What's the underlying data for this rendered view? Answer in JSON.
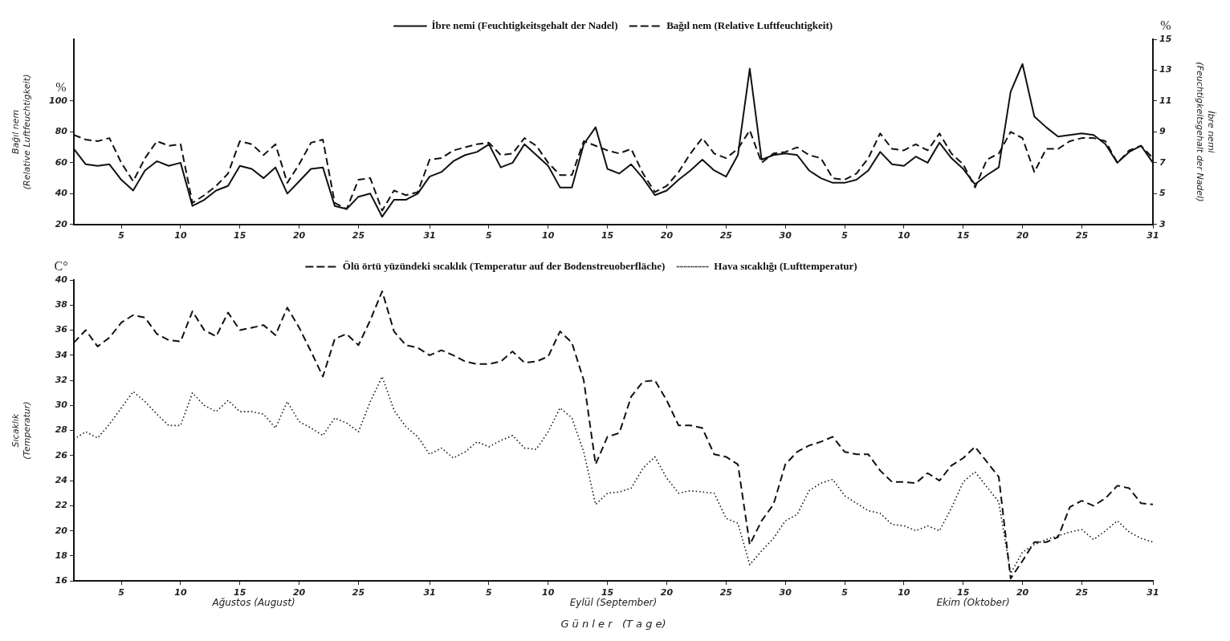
{
  "chart_data": [
    {
      "type": "line",
      "ylabel": "Bağıl nem (Relative Luftfeuchtigkeit)",
      "y2label": "İbre nemi (Feuchtigkeitsgehalt der Nadel)",
      "annotations": [
        "%",
        "%"
      ],
      "legend": "top",
      "grid": false,
      "x": [
        "--08-01",
        "--08-02",
        "--08-03",
        "--08-04",
        "--08-05",
        "--08-06",
        "--08-07",
        "--08-08",
        "--08-09",
        "--08-10",
        "--08-11",
        "--08-12",
        "--08-13",
        "--08-14",
        "--08-15",
        "--08-16",
        "--08-17",
        "--08-18",
        "--08-19",
        "--08-20",
        "--08-21",
        "--08-22",
        "--08-23",
        "--08-24",
        "--08-25",
        "--08-26",
        "--08-27",
        "--08-28",
        "--08-29",
        "--08-30",
        "--08-31",
        "--09-01",
        "--09-02",
        "--09-03",
        "--09-04",
        "--09-05",
        "--09-06",
        "--09-07",
        "--09-08",
        "--09-09",
        "--09-10",
        "--09-11",
        "--09-12",
        "--09-13",
        "--09-14",
        "--09-15",
        "--09-16",
        "--09-17",
        "--09-18",
        "--09-19",
        "--09-20",
        "--09-21",
        "--09-22",
        "--09-23",
        "--09-24",
        "--09-25",
        "--09-26",
        "--09-27",
        "--09-28",
        "--09-29",
        "--09-30",
        "--10-01",
        "--10-02",
        "--10-03",
        "--10-04",
        "--10-05",
        "--10-06",
        "--10-07",
        "--10-08",
        "--10-09",
        "--10-10",
        "--10-11",
        "--10-12",
        "--10-13",
        "--10-14",
        "--10-15",
        "--10-16",
        "--10-17",
        "--10-18",
        "--10-19",
        "--10-20",
        "--10-21",
        "--10-22",
        "--10-23",
        "--10-24",
        "--10-25",
        "--10-26",
        "--10-27",
        "--10-28",
        "--10-29",
        "--10-30",
        "--10-31"
      ],
      "xlim": [
        "--08-01",
        "--10-31"
      ],
      "xticks": [
        {
          "value": "--08-05",
          "label": "5"
        },
        {
          "value": "--08-10",
          "label": "10"
        },
        {
          "value": "--08-15",
          "label": "15"
        },
        {
          "value": "--08-20",
          "label": "20"
        },
        {
          "value": "--08-25",
          "label": "25"
        },
        {
          "value": "--08-31",
          "label": "31"
        },
        {
          "value": "--09-05",
          "label": "5"
        },
        {
          "value": "--09-10",
          "label": "10"
        },
        {
          "value": "--09-15",
          "label": "15"
        },
        {
          "value": "--09-20",
          "label": "20"
        },
        {
          "value": "--09-25",
          "label": "25"
        },
        {
          "value": "--09-30",
          "label": "30"
        },
        {
          "value": "--10-05",
          "label": "5"
        },
        {
          "value": "--10-10",
          "label": "10"
        },
        {
          "value": "--10-15",
          "label": "15"
        },
        {
          "value": "--10-20",
          "label": "20"
        },
        {
          "value": "--10-25",
          "label": "25"
        },
        {
          "value": "--10-31",
          "label": "31"
        }
      ],
      "ylim": [
        20,
        140
      ],
      "yticks": [
        20,
        40,
        60,
        80,
        100
      ],
      "y2lim": [
        3,
        15
      ],
      "y2ticks": [
        3,
        5,
        7,
        9,
        11,
        13,
        15
      ],
      "series": [
        {
          "name": "İbre nemi (Feuchtigkeitsgehalt der Nadel)",
          "color": "#111111",
          "line_style": "solid",
          "axis": "y2",
          "values": [
            7.9,
            6.9,
            6.8,
            6.9,
            5.9,
            5.2,
            6.5,
            7.1,
            6.8,
            7.0,
            4.2,
            4.6,
            5.2,
            5.5,
            6.8,
            6.6,
            6.0,
            6.7,
            5.0,
            5.8,
            6.6,
            6.7,
            4.2,
            4.0,
            4.8,
            5.0,
            3.5,
            4.6,
            4.6,
            5.0,
            6.1,
            6.4,
            7.1,
            7.5,
            7.7,
            8.2,
            6.7,
            7.0,
            8.2,
            7.5,
            6.8,
            5.4,
            5.4,
            8.2,
            9.3,
            6.6,
            6.3,
            6.9,
            6.0,
            4.9,
            5.2,
            5.9,
            6.5,
            7.2,
            6.5,
            6.1,
            7.5,
            13.1,
            7.2,
            7.5,
            7.6,
            7.5,
            6.5,
            6.0,
            5.7,
            5.7,
            5.9,
            6.5,
            7.7,
            6.9,
            6.8,
            7.4,
            7.0,
            8.3,
            7.3,
            6.6,
            5.6,
            6.2,
            6.7,
            11.6,
            13.4,
            10.0,
            9.3,
            8.7,
            8.8,
            8.9,
            8.8,
            8.2,
            7.0,
            7.7,
            8.1,
            7.0
          ]
        },
        {
          "name": "Bağıl nem (Relative Luftfeuchtigkeit)",
          "color": "#111111",
          "line_style": "dashed",
          "axis": "y",
          "values": [
            78,
            75,
            74,
            76,
            60,
            48,
            63,
            74,
            71,
            72,
            34,
            39,
            45,
            53,
            74,
            72,
            65,
            72,
            47,
            59,
            73,
            75,
            34,
            30,
            49,
            50,
            29,
            42,
            39,
            41,
            62,
            63,
            68,
            70,
            72,
            73,
            65,
            66,
            76,
            71,
            60,
            52,
            52,
            74,
            71,
            68,
            66,
            69,
            53,
            41,
            45,
            54,
            66,
            76,
            66,
            63,
            69,
            81,
            60,
            66,
            67,
            70,
            65,
            63,
            50,
            49,
            53,
            63,
            79,
            69,
            68,
            72,
            68,
            79,
            66,
            59,
            44,
            62,
            66,
            80,
            76,
            54,
            69,
            69,
            74,
            76,
            76,
            74,
            60,
            68,
            71,
            63
          ]
        }
      ]
    },
    {
      "type": "line",
      "xlabel": "G ü n l e r   (T a g e)",
      "ylabel": "Sıcaklık (Temperatur)",
      "annotations": [
        "C°",
        "Ağustos (August)",
        "Eylül (September)",
        "Ekim (Oktober)"
      ],
      "legend": "top",
      "grid": false,
      "x": [
        "--08-01",
        "--08-02",
        "--08-03",
        "--08-04",
        "--08-05",
        "--08-06",
        "--08-07",
        "--08-08",
        "--08-09",
        "--08-10",
        "--08-11",
        "--08-12",
        "--08-13",
        "--08-14",
        "--08-15",
        "--08-16",
        "--08-17",
        "--08-18",
        "--08-19",
        "--08-20",
        "--08-21",
        "--08-22",
        "--08-23",
        "--08-24",
        "--08-25",
        "--08-26",
        "--08-27",
        "--08-28",
        "--08-29",
        "--08-30",
        "--08-31",
        "--09-01",
        "--09-02",
        "--09-03",
        "--09-04",
        "--09-05",
        "--09-06",
        "--09-07",
        "--09-08",
        "--09-09",
        "--09-10",
        "--09-11",
        "--09-12",
        "--09-13",
        "--09-14",
        "--09-15",
        "--09-16",
        "--09-17",
        "--09-18",
        "--09-19",
        "--09-20",
        "--09-21",
        "--09-22",
        "--09-23",
        "--09-24",
        "--09-25",
        "--09-26",
        "--09-27",
        "--09-28",
        "--09-29",
        "--09-30",
        "--10-01",
        "--10-02",
        "--10-03",
        "--10-04",
        "--10-05",
        "--10-06",
        "--10-07",
        "--10-08",
        "--10-09",
        "--10-10",
        "--10-11",
        "--10-12",
        "--10-13",
        "--10-14",
        "--10-15",
        "--10-16",
        "--10-17",
        "--10-18",
        "--10-19",
        "--10-20",
        "--10-21",
        "--10-22",
        "--10-23",
        "--10-24",
        "--10-25",
        "--10-26",
        "--10-27",
        "--10-28",
        "--10-29",
        "--10-30",
        "--10-31"
      ],
      "xlim": [
        "--08-01",
        "--10-31"
      ],
      "xticks": [
        {
          "value": "--08-05",
          "label": "5"
        },
        {
          "value": "--08-10",
          "label": "10"
        },
        {
          "value": "--08-15",
          "label": "15"
        },
        {
          "value": "--08-20",
          "label": "20"
        },
        {
          "value": "--08-25",
          "label": "25"
        },
        {
          "value": "--08-31",
          "label": "31"
        },
        {
          "value": "--09-05",
          "label": "5"
        },
        {
          "value": "--09-10",
          "label": "10"
        },
        {
          "value": "--09-15",
          "label": "15"
        },
        {
          "value": "--09-20",
          "label": "20"
        },
        {
          "value": "--09-25",
          "label": "25"
        },
        {
          "value": "--09-30",
          "label": "30"
        },
        {
          "value": "--10-05",
          "label": "5"
        },
        {
          "value": "--10-10",
          "label": "10"
        },
        {
          "value": "--10-15",
          "label": "15"
        },
        {
          "value": "--10-20",
          "label": "20"
        },
        {
          "value": "--10-25",
          "label": "25"
        },
        {
          "value": "--10-31",
          "label": "31"
        }
      ],
      "ylim": [
        16,
        40
      ],
      "yticks": [
        16,
        18,
        20,
        22,
        24,
        26,
        28,
        30,
        32,
        34,
        36,
        38,
        40
      ],
      "series": [
        {
          "name": "Ölü örtü yüzündeki sıcaklık (Temperatur auf der Bodenstreuoberfläche)",
          "color": "#111111",
          "line_style": "dashed",
          "values": [
            35.0,
            36.0,
            34.7,
            35.4,
            36.6,
            37.2,
            37.0,
            35.7,
            35.2,
            35.1,
            37.5,
            36.0,
            35.5,
            37.4,
            36.0,
            36.2,
            36.4,
            35.6,
            37.8,
            36.2,
            34.3,
            32.3,
            35.3,
            35.7,
            34.8,
            36.8,
            39.1,
            35.9,
            34.8,
            34.6,
            34.0,
            34.4,
            34.0,
            33.5,
            33.3,
            33.3,
            33.5,
            34.3,
            33.4,
            33.5,
            33.9,
            35.9,
            35.0,
            32.0,
            25.3,
            27.5,
            27.8,
            30.7,
            31.9,
            32.0,
            30.4,
            28.4,
            28.4,
            28.2,
            26.1,
            25.9,
            25.3,
            18.9,
            20.8,
            22.1,
            25.3,
            26.3,
            26.8,
            27.1,
            27.5,
            26.3,
            26.1,
            26.1,
            24.8,
            23.9,
            23.9,
            23.8,
            24.6,
            24.0,
            25.2,
            25.8,
            26.7,
            25.5,
            24.3,
            16.2,
            17.6,
            19.1,
            19.1,
            19.5,
            21.9,
            22.4,
            22.0,
            22.6,
            23.6,
            23.4,
            22.2,
            22.1
          ]
        },
        {
          "name": "Hava sıcaklığı (Lufttemperatur)",
          "color": "#111111",
          "line_style": "dotted",
          "values": [
            27.3,
            27.9,
            27.4,
            28.5,
            29.8,
            31.1,
            30.3,
            29.3,
            28.4,
            28.4,
            31.0,
            30.0,
            29.5,
            30.4,
            29.5,
            29.5,
            29.3,
            28.2,
            30.3,
            28.7,
            28.2,
            27.6,
            29.0,
            28.6,
            27.9,
            30.3,
            32.3,
            29.6,
            28.3,
            27.5,
            26.1,
            26.6,
            25.8,
            26.3,
            27.1,
            26.7,
            27.2,
            27.6,
            26.6,
            26.5,
            27.9,
            29.8,
            29.0,
            26.3,
            22.1,
            23.0,
            23.1,
            23.4,
            25.0,
            25.9,
            24.2,
            23.0,
            23.2,
            23.1,
            23.0,
            21.0,
            20.6,
            17.3,
            18.4,
            19.4,
            20.8,
            21.3,
            23.2,
            23.8,
            24.1,
            22.8,
            22.2,
            21.6,
            21.4,
            20.5,
            20.4,
            20.0,
            20.4,
            20.0,
            21.8,
            23.9,
            24.7,
            23.5,
            22.3,
            16.6,
            18.3,
            18.9,
            19.3,
            19.6,
            19.9,
            20.1,
            19.3,
            20.0,
            20.8,
            19.9,
            19.4,
            19.1
          ]
        }
      ]
    }
  ]
}
